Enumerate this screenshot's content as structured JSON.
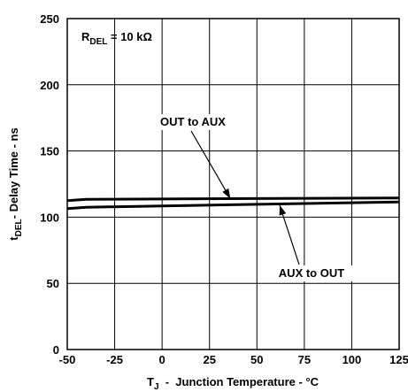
{
  "chart_data": {
    "type": "line",
    "x": [
      -50,
      -40,
      125
    ],
    "series": [
      {
        "label": "OUT to AUX",
        "values": [
          112.5,
          113.5,
          114.5
        ]
      },
      {
        "label": "AUX to OUT",
        "values": [
          106.5,
          107.5,
          111.5
        ]
      }
    ],
    "xlim": [
      -50,
      125
    ],
    "ylim": [
      0,
      250
    ],
    "xticks": [
      "-50",
      "-25",
      "0",
      "25",
      "50",
      "75",
      "100",
      "125"
    ],
    "yticks": [
      "0",
      "50",
      "100",
      "150",
      "200",
      "250"
    ],
    "xlabel": {
      "main": "T",
      "sub": "J",
      "rest": "  -  Junction Temperature - °C"
    },
    "ylabel": {
      "main": "t",
      "sub": "DEL",
      "rest": "- Delay Time - ns"
    },
    "condition": {
      "main": "R",
      "sub": "DEL",
      "rest": " = 10 kΩ"
    },
    "annotations": [
      {
        "text": "OUT to AUX",
        "points_to_series": 0,
        "x": 36,
        "y": 114
      },
      {
        "text": "AUX to OUT",
        "points_to_series": 1,
        "x": 62,
        "y": 109
      }
    ],
    "grid": true
  }
}
